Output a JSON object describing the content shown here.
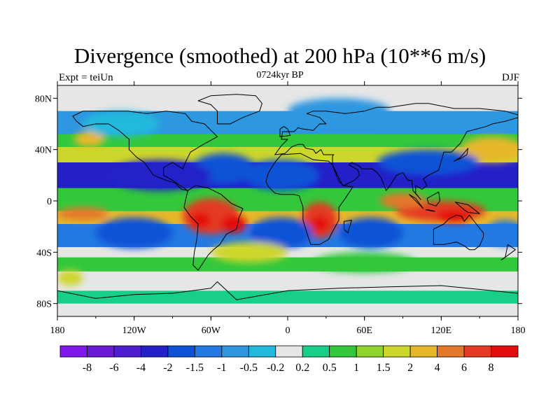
{
  "chart_data": {
    "type": "heatmap",
    "title": "Divergence (smoothed) at 200 hPa (10**6 m/s)",
    "left_label": "Expt = teiUn",
    "subtitle": "0724kyr BP",
    "right_label": "DJF",
    "x_ticks": [
      "180",
      "120W",
      "60W",
      "0",
      "60E",
      "120E",
      "180"
    ],
    "y_ticks": [
      "80N",
      "40N",
      "0",
      "40S",
      "80S"
    ],
    "x_range": [
      -180,
      180
    ],
    "y_range": [
      -90,
      90
    ],
    "colorbar": {
      "levels": [
        "-8",
        "-6",
        "-4",
        "-2",
        "-1.5",
        "-1",
        "-0.5",
        "-0.2",
        "0.2",
        "0.5",
        "1",
        "1.5",
        "2",
        "4",
        "6",
        "8"
      ],
      "colors": [
        "#7f18ea",
        "#6a19d6",
        "#4c1ecf",
        "#2420c8",
        "#0d52d6",
        "#2379e2",
        "#2d97e0",
        "#22b9dd",
        "#e6e6e6",
        "#17cf86",
        "#33c83c",
        "#8fd42c",
        "#cdd62a",
        "#e6b829",
        "#e3782a",
        "#e33a21",
        "#e30d0d"
      ]
    },
    "field_blobs": [
      {
        "lon": -60,
        "lat": -12,
        "rx": 22,
        "ry": 14,
        "level": 15
      },
      {
        "lon": -68,
        "lat": -15,
        "rx": 8,
        "ry": 6,
        "level": 16
      },
      {
        "lon": -42,
        "lat": -18,
        "rx": 10,
        "ry": 7,
        "level": 16
      },
      {
        "lon": 25,
        "lat": -15,
        "rx": 14,
        "ry": 14,
        "level": 15
      },
      {
        "lon": 25,
        "lat": -18,
        "rx": 7,
        "ry": 6,
        "level": 16
      },
      {
        "lon": 120,
        "lat": -8,
        "rx": 35,
        "ry": 8,
        "level": 15
      },
      {
        "lon": 130,
        "lat": -12,
        "rx": 14,
        "ry": 5,
        "level": 16
      },
      {
        "lon": 90,
        "lat": 0,
        "rx": 18,
        "ry": 6,
        "level": 14
      },
      {
        "lon": -160,
        "lat": -10,
        "rx": 20,
        "ry": 5,
        "level": 14
      },
      {
        "lon": 160,
        "lat": 40,
        "rx": 25,
        "ry": 10,
        "level": 13
      },
      {
        "lon": -155,
        "lat": 48,
        "rx": 12,
        "ry": 6,
        "level": 13
      },
      {
        "lon": -40,
        "lat": 30,
        "rx": 10,
        "ry": 5,
        "level": 14
      },
      {
        "lon": -50,
        "lat": 25,
        "rx": 25,
        "ry": 12,
        "level": 4
      },
      {
        "lon": -100,
        "lat": 20,
        "rx": 40,
        "ry": 12,
        "level": 3
      },
      {
        "lon": 110,
        "lat": 30,
        "rx": 40,
        "ry": 10,
        "level": 4
      },
      {
        "lon": -5,
        "lat": 20,
        "rx": 30,
        "ry": 12,
        "level": 4
      },
      {
        "lon": -120,
        "lat": -25,
        "rx": 30,
        "ry": 12,
        "level": 4
      },
      {
        "lon": -5,
        "lat": -25,
        "rx": 25,
        "ry": 12,
        "level": 4
      },
      {
        "lon": 65,
        "lat": -25,
        "rx": 25,
        "ry": 12,
        "level": 4
      },
      {
        "lon": 170,
        "lat": -25,
        "rx": 15,
        "ry": 10,
        "level": 5
      },
      {
        "lon": -30,
        "lat": -40,
        "rx": 30,
        "ry": 8,
        "level": 12
      },
      {
        "lon": 60,
        "lat": -48,
        "rx": 40,
        "ry": 8,
        "level": 10
      },
      {
        "lon": -170,
        "lat": -60,
        "rx": 10,
        "ry": 6,
        "level": 12
      },
      {
        "lon": 40,
        "lat": 70,
        "rx": 40,
        "ry": 10,
        "level": 6
      },
      {
        "lon": -130,
        "lat": 60,
        "rx": 30,
        "ry": 10,
        "level": 7
      }
    ],
    "bands": [
      {
        "lat_from": 90,
        "lat_to": 70,
        "level": 8
      },
      {
        "lat_from": 70,
        "lat_to": 52,
        "level": 6
      },
      {
        "lat_from": 52,
        "lat_to": 42,
        "level": 10
      },
      {
        "lat_from": 42,
        "lat_to": 30,
        "level": 12
      },
      {
        "lat_from": 30,
        "lat_to": 10,
        "level": 3
      },
      {
        "lat_from": 10,
        "lat_to": -8,
        "level": 10
      },
      {
        "lat_from": -8,
        "lat_to": -18,
        "level": 13
      },
      {
        "lat_from": -18,
        "lat_to": -36,
        "level": 5
      },
      {
        "lat_from": -36,
        "lat_to": -44,
        "level": 8
      },
      {
        "lat_from": -44,
        "lat_to": -55,
        "level": 10
      },
      {
        "lat_from": -55,
        "lat_to": -70,
        "level": 8
      },
      {
        "lat_from": -70,
        "lat_to": -80,
        "level": 9
      },
      {
        "lat_from": -80,
        "lat_to": -90,
        "level": 8
      }
    ],
    "continents": [
      [
        [
          -168,
          66
        ],
        [
          -160,
          70
        ],
        [
          -140,
          70
        ],
        [
          -125,
          70
        ],
        [
          -110,
          68
        ],
        [
          -95,
          70
        ],
        [
          -80,
          68
        ],
        [
          -75,
          62
        ],
        [
          -65,
          60
        ],
        [
          -55,
          50
        ],
        [
          -66,
          44
        ],
        [
          -76,
          38
        ],
        [
          -80,
          30
        ],
        [
          -82,
          25
        ],
        [
          -90,
          30
        ],
        [
          -97,
          26
        ],
        [
          -97,
          20
        ],
        [
          -90,
          16
        ],
        [
          -84,
          12
        ],
        [
          -78,
          8
        ],
        [
          -83,
          9
        ],
        [
          -88,
          14
        ],
        [
          -95,
          16
        ],
        [
          -105,
          20
        ],
        [
          -112,
          30
        ],
        [
          -118,
          34
        ],
        [
          -124,
          40
        ],
        [
          -124,
          48
        ],
        [
          -132,
          55
        ],
        [
          -140,
          60
        ],
        [
          -150,
          60
        ],
        [
          -160,
          58
        ],
        [
          -165,
          62
        ]
      ],
      [
        [
          -78,
          8
        ],
        [
          -72,
          12
        ],
        [
          -62,
          10
        ],
        [
          -52,
          5
        ],
        [
          -44,
          -2
        ],
        [
          -35,
          -6
        ],
        [
          -38,
          -13
        ],
        [
          -40,
          -22
        ],
        [
          -48,
          -26
        ],
        [
          -53,
          -34
        ],
        [
          -58,
          -38
        ],
        [
          -62,
          -42
        ],
        [
          -66,
          -48
        ],
        [
          -70,
          -54
        ],
        [
          -74,
          -50
        ],
        [
          -73,
          -40
        ],
        [
          -71,
          -30
        ],
        [
          -70,
          -18
        ],
        [
          -76,
          -12
        ],
        [
          -81,
          -5
        ],
        [
          -80,
          0
        ]
      ],
      [
        [
          -17,
          15
        ],
        [
          -15,
          22
        ],
        [
          -10,
          30
        ],
        [
          -5,
          36
        ],
        [
          10,
          37
        ],
        [
          20,
          32
        ],
        [
          32,
          31
        ],
        [
          35,
          28
        ],
        [
          43,
          12
        ],
        [
          51,
          11
        ],
        [
          45,
          2
        ],
        [
          40,
          -5
        ],
        [
          40,
          -15
        ],
        [
          35,
          -24
        ],
        [
          32,
          -30
        ],
        [
          25,
          -34
        ],
        [
          18,
          -34
        ],
        [
          15,
          -25
        ],
        [
          12,
          -15
        ],
        [
          12,
          -5
        ],
        [
          9,
          4
        ],
        [
          5,
          5
        ],
        [
          -5,
          5
        ],
        [
          -10,
          6
        ],
        [
          -15,
          11
        ]
      ],
      [
        [
          -10,
          36
        ],
        [
          -5,
          43
        ],
        [
          0,
          48
        ],
        [
          -5,
          48
        ],
        [
          -4,
          54
        ],
        [
          5,
          54
        ],
        [
          8,
          57
        ],
        [
          12,
          56
        ],
        [
          20,
          55
        ],
        [
          25,
          60
        ],
        [
          30,
          60
        ],
        [
          25,
          65
        ],
        [
          15,
          68
        ],
        [
          20,
          70
        ],
        [
          30,
          70
        ],
        [
          45,
          68
        ],
        [
          60,
          70
        ],
        [
          70,
          73
        ],
        [
          80,
          73
        ],
        [
          100,
          76
        ],
        [
          110,
          76
        ],
        [
          130,
          72
        ],
        [
          150,
          72
        ],
        [
          170,
          70
        ],
        [
          180,
          67
        ],
        [
          180,
          65
        ],
        [
          170,
          62
        ],
        [
          160,
          60
        ],
        [
          155,
          58
        ],
        [
          140,
          54
        ],
        [
          135,
          45
        ],
        [
          128,
          38
        ],
        [
          122,
          38
        ],
        [
          120,
          31
        ],
        [
          118,
          24
        ],
        [
          110,
          20
        ],
        [
          106,
          17
        ],
        [
          109,
          12
        ],
        [
          105,
          9
        ],
        [
          100,
          12
        ],
        [
          100,
          6
        ],
        [
          104,
          1
        ],
        [
          98,
          8
        ],
        [
          97,
          16
        ],
        [
          94,
          16
        ],
        [
          90,
          22
        ],
        [
          85,
          20
        ],
        [
          80,
          12
        ],
        [
          77,
          8
        ],
        [
          73,
          18
        ],
        [
          70,
          22
        ],
        [
          66,
          25
        ],
        [
          58,
          25
        ],
        [
          56,
          27
        ],
        [
          50,
          30
        ],
        [
          48,
          28
        ],
        [
          55,
          24
        ],
        [
          56,
          20
        ],
        [
          52,
          16
        ],
        [
          44,
          12
        ],
        [
          40,
          15
        ],
        [
          35,
          28
        ],
        [
          35,
          35
        ],
        [
          36,
          36
        ],
        [
          28,
          36
        ],
        [
          26,
          40
        ],
        [
          22,
          37
        ],
        [
          20,
          40
        ],
        [
          14,
          41
        ],
        [
          12,
          44
        ],
        [
          8,
          44
        ],
        [
          3,
          42
        ],
        [
          -2,
          37
        ]
      ],
      [
        [
          114,
          -22
        ],
        [
          114,
          -34
        ],
        [
          122,
          -34
        ],
        [
          132,
          -32
        ],
        [
          138,
          -35
        ],
        [
          142,
          -38
        ],
        [
          146,
          -38
        ],
        [
          150,
          -35
        ],
        [
          153,
          -28
        ],
        [
          153,
          -25
        ],
        [
          145,
          -15
        ],
        [
          142,
          -11
        ],
        [
          138,
          -16
        ],
        [
          136,
          -12
        ],
        [
          132,
          -11
        ],
        [
          126,
          -14
        ],
        [
          122,
          -18
        ]
      ],
      [
        [
          -55,
          60
        ],
        [
          -45,
          60
        ],
        [
          -35,
          65
        ],
        [
          -22,
          70
        ],
        [
          -20,
          76
        ],
        [
          -25,
          82
        ],
        [
          -40,
          83
        ],
        [
          -60,
          82
        ],
        [
          -70,
          78
        ],
        [
          -60,
          75
        ],
        [
          -55,
          70
        ]
      ],
      [
        [
          -180,
          -70
        ],
        [
          -150,
          -76
        ],
        [
          -120,
          -73
        ],
        [
          -90,
          -72
        ],
        [
          -60,
          -68
        ],
        [
          -55,
          -63
        ],
        [
          -40,
          -77
        ],
        [
          0,
          -70
        ],
        [
          40,
          -68
        ],
        [
          80,
          -67
        ],
        [
          120,
          -66
        ],
        [
          160,
          -70
        ],
        [
          180,
          -72
        ],
        [
          180,
          -90
        ],
        [
          -180,
          -90
        ]
      ],
      [
        [
          95,
          5
        ],
        [
          100,
          2
        ],
        [
          106,
          -6
        ],
        [
          104,
          -4
        ],
        [
          98,
          2
        ]
      ],
      [
        [
          110,
          -7
        ],
        [
          115,
          -8
        ],
        [
          114,
          -8
        ],
        [
          108,
          -7
        ]
      ],
      [
        [
          109,
          2
        ],
        [
          118,
          7
        ],
        [
          119,
          0
        ],
        [
          116,
          -4
        ],
        [
          110,
          -2
        ]
      ],
      [
        [
          131,
          -1
        ],
        [
          141,
          -3
        ],
        [
          150,
          -10
        ],
        [
          141,
          -9
        ],
        [
          138,
          -7
        ]
      ],
      [
        [
          130,
          31
        ],
        [
          135,
          34
        ],
        [
          141,
          41
        ],
        [
          140,
          36
        ],
        [
          135,
          33
        ]
      ],
      [
        [
          -6,
          50
        ],
        [
          2,
          51
        ],
        [
          0,
          56
        ],
        [
          -3,
          58
        ],
        [
          -6,
          56
        ]
      ],
      [
        [
          44,
          -16
        ],
        [
          50,
          -15
        ],
        [
          47,
          -25
        ],
        [
          44,
          -22
        ]
      ],
      [
        [
          172,
          -34
        ],
        [
          178,
          -38
        ],
        [
          174,
          -41
        ],
        [
          167,
          -46
        ],
        [
          170,
          -44
        ]
      ]
    ]
  }
}
